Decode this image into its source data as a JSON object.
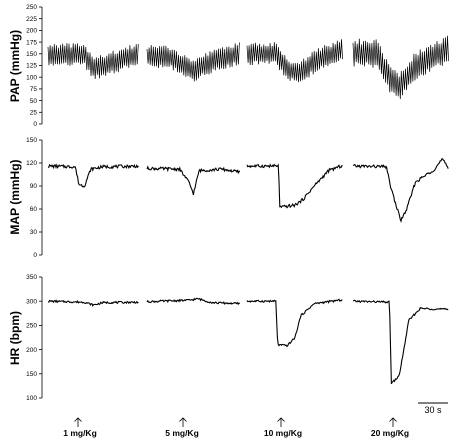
{
  "chart_data": [
    {
      "id": "pap",
      "type": "line",
      "ylabel": "PAP (mmHg)",
      "ylim": [
        0,
        250
      ],
      "yticks": [
        0,
        25,
        50,
        75,
        100,
        125,
        150,
        175,
        200,
        225,
        250
      ],
      "series": [
        {
          "segment": 1,
          "mean": [
            [
              0,
              148
            ],
            [
              0.4,
              148
            ],
            [
              0.5,
              118
            ],
            [
              0.65,
              128
            ],
            [
              1,
              150
            ]
          ],
          "amp": 20
        },
        {
          "segment": 2,
          "mean": [
            [
              0,
              145
            ],
            [
              0.25,
              142
            ],
            [
              0.5,
              115
            ],
            [
              0.75,
              138
            ],
            [
              1,
              150
            ]
          ],
          "amp": 20
        },
        {
          "segment": 3,
          "mean": [
            [
              0,
              150
            ],
            [
              0.3,
              150
            ],
            [
              0.42,
              115
            ],
            [
              0.55,
              110
            ],
            [
              0.75,
              140
            ],
            [
              1,
              158
            ]
          ],
          "amp": 20
        },
        {
          "segment": 4,
          "mean": [
            [
              0,
              152
            ],
            [
              0.25,
              150
            ],
            [
              0.38,
              95
            ],
            [
              0.48,
              80
            ],
            [
              0.65,
              125
            ],
            [
              1,
              160
            ]
          ],
          "amp": 25
        }
      ]
    },
    {
      "id": "map",
      "type": "line",
      "ylabel": "MAP (mmHg)",
      "ylim": [
        0,
        150
      ],
      "yticks": [
        0,
        30,
        60,
        90,
        120,
        150
      ],
      "series": [
        {
          "segment": 1,
          "points": [
            [
              0,
              116
            ],
            [
              0.3,
              115
            ],
            [
              0.34,
              92
            ],
            [
              0.4,
              90
            ],
            [
              0.47,
              112
            ],
            [
              0.6,
              115
            ],
            [
              1,
              116
            ]
          ]
        },
        {
          "segment": 2,
          "points": [
            [
              0,
              113
            ],
            [
              0.35,
              112
            ],
            [
              0.45,
              95
            ],
            [
              0.5,
              80
            ],
            [
              0.56,
              110
            ],
            [
              0.8,
              112
            ],
            [
              1,
              108
            ]
          ]
        },
        {
          "segment": 3,
          "points": [
            [
              0,
              116
            ],
            [
              0.33,
              116
            ],
            [
              0.34,
              62
            ],
            [
              0.5,
              65
            ],
            [
              0.58,
              72
            ],
            [
              0.7,
              90
            ],
            [
              0.85,
              110
            ],
            [
              1,
              117
            ]
          ]
        },
        {
          "segment": 4,
          "points": [
            [
              0,
              116
            ],
            [
              0.35,
              115
            ],
            [
              0.38,
              95
            ],
            [
              0.44,
              68
            ],
            [
              0.5,
              45
            ],
            [
              0.56,
              60
            ],
            [
              0.65,
              95
            ],
            [
              0.85,
              112
            ],
            [
              0.93,
              125
            ],
            [
              1,
              112
            ]
          ]
        }
      ]
    },
    {
      "id": "hr",
      "type": "line",
      "ylabel": "HR (bpm)",
      "ylim": [
        100,
        350
      ],
      "yticks": [
        100,
        150,
        200,
        250,
        300,
        350
      ],
      "series": [
        {
          "segment": 1,
          "points": [
            [
              0,
              300
            ],
            [
              0.4,
              298
            ],
            [
              0.5,
              292
            ],
            [
              0.6,
              297
            ],
            [
              1,
              298
            ]
          ]
        },
        {
          "segment": 2,
          "points": [
            [
              0,
              299
            ],
            [
              0.45,
              302
            ],
            [
              0.55,
              305
            ],
            [
              0.7,
              297
            ],
            [
              1,
              295
            ]
          ]
        },
        {
          "segment": 3,
          "points": [
            [
              0,
              300
            ],
            [
              0.3,
              300
            ],
            [
              0.32,
              210
            ],
            [
              0.42,
              208
            ],
            [
              0.5,
              225
            ],
            [
              0.56,
              270
            ],
            [
              0.7,
              295
            ],
            [
              1,
              303
            ]
          ]
        },
        {
          "segment": 4,
          "points": [
            [
              0,
              300
            ],
            [
              0.38,
              298
            ],
            [
              0.4,
              130
            ],
            [
              0.48,
              145
            ],
            [
              0.53,
              200
            ],
            [
              0.58,
              260
            ],
            [
              0.7,
              285
            ],
            [
              1,
              283
            ]
          ]
        }
      ]
    }
  ],
  "doses": [
    "1 mg/Kg",
    "5 mg/Kg",
    "10 mg/Kg",
    "20 mg/Kg"
  ],
  "scale_bar": "30 s"
}
